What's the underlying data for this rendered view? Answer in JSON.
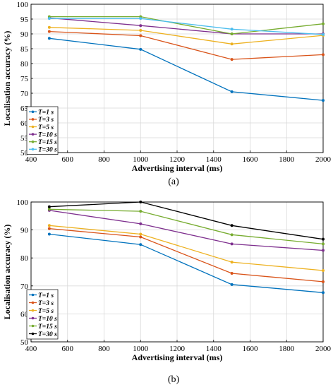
{
  "chart_data": [
    {
      "type": "line",
      "panel_label": "(a)",
      "xlabel": "Advertising interval (ms)",
      "ylabel": "Localisation accuracy (%)",
      "xlim": [
        400,
        2000
      ],
      "ylim": [
        50,
        100
      ],
      "xticks": [
        400,
        600,
        800,
        1000,
        1200,
        1400,
        1600,
        1800,
        2000
      ],
      "yticks": [
        50,
        55,
        60,
        65,
        70,
        75,
        80,
        85,
        90,
        95,
        100
      ],
      "grid": true,
      "legend_position": "bottom-left",
      "x": [
        500,
        1000,
        1500,
        2000
      ],
      "series": [
        {
          "name": "T=1 s",
          "color": "#0072BD",
          "values": [
            88.5,
            84.8,
            70.5,
            67.6
          ]
        },
        {
          "name": "T=3 s",
          "color": "#D95319",
          "values": [
            90.8,
            89.4,
            81.4,
            83.0
          ]
        },
        {
          "name": "T=5 s",
          "color": "#EDB120",
          "values": [
            92.2,
            91.2,
            86.6,
            89.5
          ]
        },
        {
          "name": "T=10 s",
          "color": "#7E2F8E",
          "values": [
            95.4,
            92.8,
            90.0,
            90.0
          ]
        },
        {
          "name": "T=15 s",
          "color": "#77AC30",
          "values": [
            95.8,
            95.8,
            90.0,
            93.4
          ]
        },
        {
          "name": "T=30 s",
          "color": "#4DBEEE",
          "values": [
            95.2,
            95.2,
            91.6,
            89.8
          ]
        }
      ]
    },
    {
      "type": "line",
      "panel_label": "(b)",
      "xlabel": "Advertising interval (ms)",
      "ylabel": "Localisation accuracy (%)",
      "xlim": [
        400,
        2000
      ],
      "ylim": [
        50,
        100
      ],
      "xticks": [
        400,
        600,
        800,
        1000,
        1200,
        1400,
        1600,
        1800,
        2000
      ],
      "yticks": [
        50,
        60,
        70,
        80,
        90,
        100
      ],
      "grid": true,
      "legend_position": "bottom-left",
      "x": [
        500,
        1000,
        1500,
        2000
      ],
      "series": [
        {
          "name": "T=1 s",
          "color": "#0072BD",
          "values": [
            88.5,
            84.8,
            70.5,
            67.6
          ]
        },
        {
          "name": "T=3 s",
          "color": "#D95319",
          "values": [
            90.5,
            87.5,
            74.5,
            71.5
          ]
        },
        {
          "name": "T=5 s",
          "color": "#EDB120",
          "values": [
            91.6,
            88.5,
            78.5,
            75.5
          ]
        },
        {
          "name": "T=10 s",
          "color": "#7E2F8E",
          "values": [
            97.0,
            92.2,
            85.0,
            82.7
          ]
        },
        {
          "name": "T=15 s",
          "color": "#77AC30",
          "values": [
            97.4,
            96.7,
            88.3,
            85.0
          ]
        },
        {
          "name": "T=30 s",
          "color": "#000000",
          "values": [
            98.3,
            100.0,
            91.6,
            86.7
          ]
        }
      ]
    }
  ]
}
